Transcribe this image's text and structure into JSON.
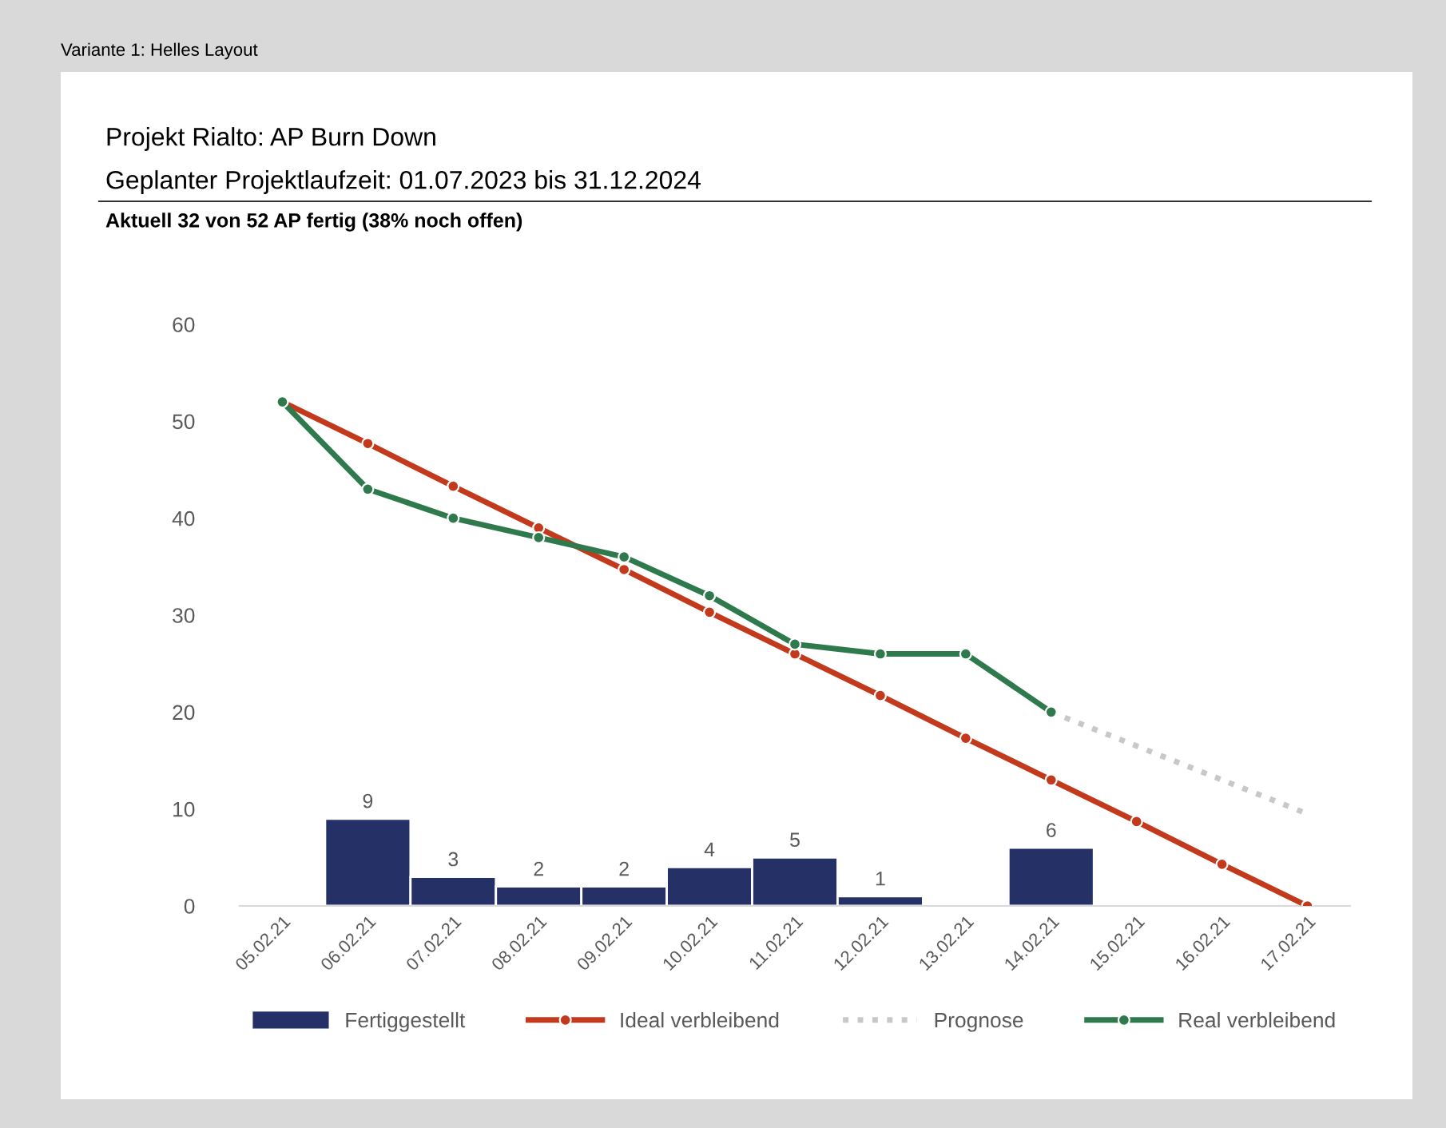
{
  "chart_data": {
    "type": "bar",
    "title": "Projekt Rialto: AP Burn Down",
    "subtitle": "Geplanter Projektlaufzeit: 01.07.2023 bis 31.12.2024",
    "annotations": [
      "Aktuell 32 von 52 AP fertig (38% noch offen)",
      "Variante 1: Helles Layout"
    ],
    "categories": [
      "05.02.21",
      "06.02.21",
      "07.02.21",
      "08.02.21",
      "09.02.21",
      "10.02.21",
      "11.02.21",
      "12.02.21",
      "13.02.21",
      "14.02.21",
      "15.02.21",
      "16.02.21",
      "17.02.21"
    ],
    "series": [
      {
        "name": "Fertiggestellt",
        "color": "#253166",
        "values": [
          null,
          9,
          3,
          2,
          2,
          4,
          5,
          1,
          null,
          6,
          null,
          null,
          null
        ],
        "value_labels": [
          null,
          "9",
          "3",
          "2",
          "2",
          "4",
          "5",
          "1",
          null,
          "6",
          null,
          null,
          null
        ]
      },
      {
        "name": "Ideal verbleibend",
        "type": "line",
        "color": "#c3391c",
        "marker": "circle",
        "line_style": "solid",
        "values": [
          52,
          47.7,
          43.3,
          39,
          34.7,
          30.3,
          26,
          21.7,
          17.3,
          13,
          8.7,
          4.3,
          0
        ]
      },
      {
        "name": "Prognose",
        "type": "line",
        "color": "#c8c8c8",
        "marker": "none",
        "line_style": "dotted",
        "values": [
          null,
          null,
          null,
          null,
          null,
          null,
          null,
          null,
          null,
          20,
          16.5,
          13,
          9.5
        ]
      },
      {
        "name": "Real verbleibend",
        "type": "line",
        "color": "#2e7a4c",
        "marker": "circle",
        "line_style": "solid",
        "values": [
          52,
          43,
          40,
          38,
          36,
          32,
          27,
          26,
          26,
          20,
          null,
          null,
          null
        ]
      }
    ],
    "ylim": [
      0,
      60
    ],
    "yticks": [
      0,
      10,
      20,
      30,
      40,
      50,
      60
    ],
    "grid": false,
    "legend": "bottom"
  }
}
